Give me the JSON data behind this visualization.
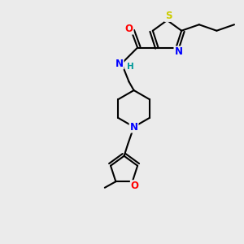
{
  "bg_color": "#ebebeb",
  "bond_color": "#000000",
  "bond_width": 1.5,
  "atom_colors": {
    "S": "#cccc00",
    "N": "#0000ff",
    "O": "#ff0000",
    "C": "#000000",
    "H": "#009999"
  },
  "fig_w": 3.0,
  "fig_h": 3.0,
  "dpi": 100,
  "xlim": [
    0,
    10
  ],
  "ylim": [
    0,
    10
  ],
  "font_size": 8.5
}
